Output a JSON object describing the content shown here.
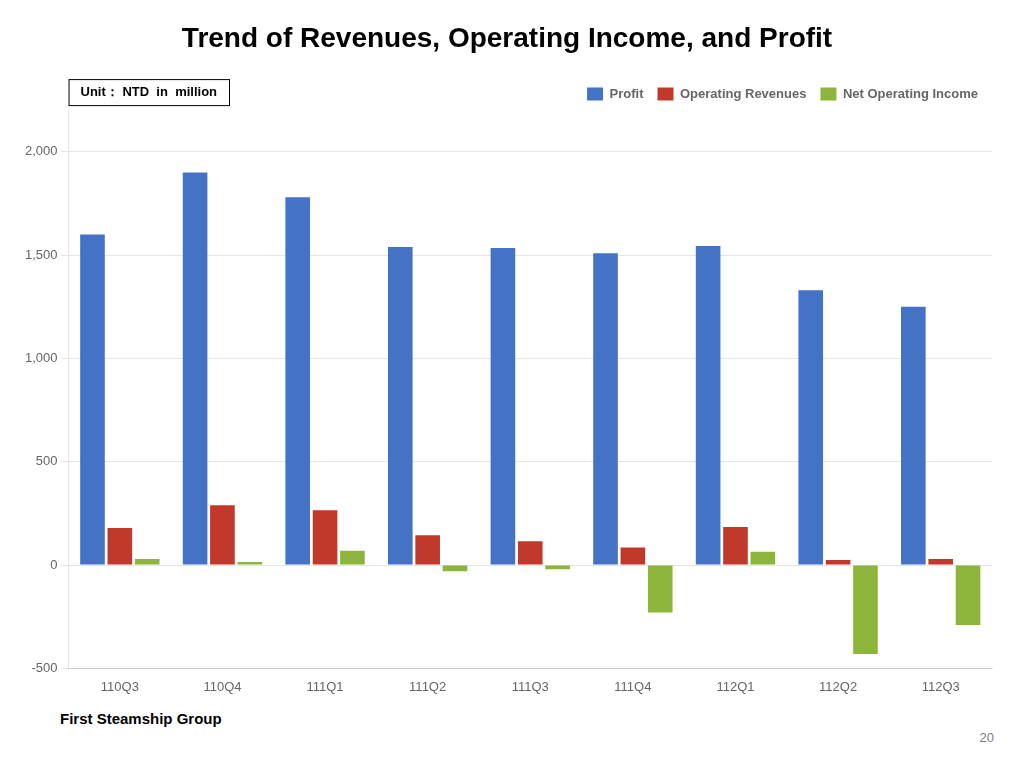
{
  "chart_data": {
    "type": "bar",
    "title": "Trend of Revenues, Operating Income, and Profit",
    "annotations": [
      "Unit： NTD  in  million",
      "First Steamship Group",
      "20"
    ],
    "categories": [
      "110Q3",
      "110Q4",
      "111Q1",
      "111Q2",
      "111Q3",
      "111Q4",
      "112Q1",
      "112Q2",
      "112Q3"
    ],
    "series": [
      {
        "name": "Profit",
        "color": "#4472C4",
        "values": [
          1600,
          1900,
          1780,
          1540,
          1535,
          1510,
          1545,
          1330,
          1250
        ]
      },
      {
        "name": "Operating Revenues",
        "color": "#C0392B",
        "values": [
          180,
          290,
          265,
          145,
          115,
          85,
          185,
          25,
          30
        ]
      },
      {
        "name": "Net Operating Income",
        "color": "#8DB53C",
        "values": [
          30,
          15,
          70,
          -30,
          -20,
          -230,
          65,
          -430,
          -290
        ]
      }
    ],
    "ylim": [
      -500,
      2200
    ],
    "yticks": [
      -500,
      0,
      500,
      {
        "value": 1000,
        "label": "1,000"
      },
      {
        "value": 1500,
        "label": "1,500"
      },
      {
        "value": 2000,
        "label": "2,000"
      }
    ],
    "grid": true,
    "legend": "upper right"
  }
}
